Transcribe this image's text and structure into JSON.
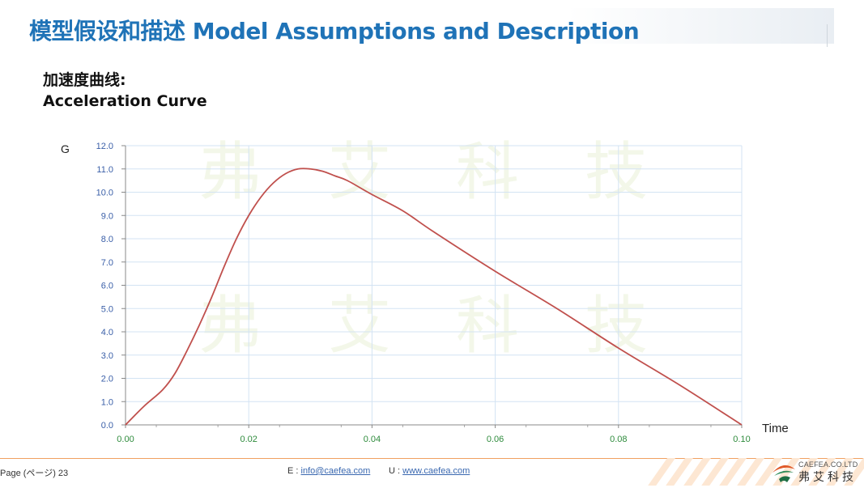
{
  "header": {
    "title": "模型假设和描述 Model Assumptions and Description"
  },
  "subtitle": {
    "line1": "加速度曲线:",
    "line2": "Acceleration  Curve"
  },
  "watermark": {
    "chars": [
      "弗",
      "艾",
      "科",
      "技"
    ]
  },
  "chart_data": {
    "type": "line",
    "ylabel": "G",
    "xlabel": "Time",
    "xlim": [
      0.0,
      0.1
    ],
    "ylim": [
      0.0,
      12.0
    ],
    "x_ticks": [
      "0.00",
      "0.02",
      "0.04",
      "0.06",
      "0.08",
      "0.10"
    ],
    "y_ticks": [
      "0.0",
      "1.0",
      "2.0",
      "3.0",
      "4.0",
      "5.0",
      "6.0",
      "7.0",
      "8.0",
      "9.0",
      "10.0",
      "11.0",
      "12.0"
    ],
    "grid": true,
    "colors": {
      "line": "#c0504d",
      "tick_x": "#2e8b3c",
      "tick_y": "#3a5fa8",
      "grid": "#d3e3f3"
    },
    "series": [
      {
        "x": [
          0.0,
          0.003,
          0.006,
          0.008,
          0.01,
          0.012,
          0.014,
          0.016,
          0.018,
          0.02,
          0.022,
          0.024,
          0.026,
          0.028,
          0.03,
          0.032,
          0.034,
          0.036,
          0.04,
          0.045,
          0.05,
          0.06,
          0.07,
          0.08,
          0.09,
          0.1
        ],
        "y": [
          0.0,
          0.8,
          1.5,
          2.2,
          3.2,
          4.3,
          5.5,
          6.8,
          8.0,
          9.0,
          9.8,
          10.4,
          10.8,
          11.0,
          11.0,
          10.9,
          10.7,
          10.5,
          9.9,
          9.2,
          8.3,
          6.6,
          5.0,
          3.3,
          1.7,
          0.0
        ]
      }
    ]
  },
  "footer": {
    "page": "Page (ページ)  23",
    "email_label": "E : ",
    "email": "info@caefea.com",
    "web_label": "U : ",
    "web": "www.caefea.com",
    "logo_en": "CAEFEA.CO.LTD",
    "logo_cn": "弗艾科技"
  }
}
